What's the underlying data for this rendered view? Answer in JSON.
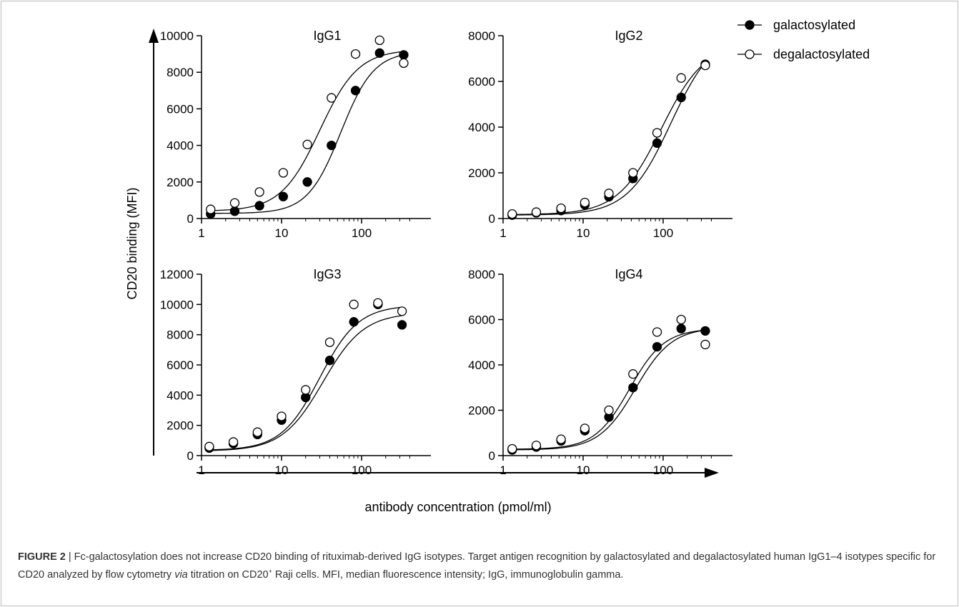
{
  "figure": {
    "caption": {
      "label": "FIGURE 2",
      "separator": "|",
      "part1": "Fc-galactosylation does not increase CD20 binding of rituximab-derived IgG isotypes. Target antigen recognition by galactosylated and degalactosylated human IgG1–4 isotypes specific for CD20 analyzed by flow cytometry",
      "via": "via",
      "part2": "titration on CD20",
      "superscript": "+",
      "part3": "Raji cells. MFI, median fluorescence intensity; IgG, immunoglobulin gamma."
    }
  },
  "chart_data": {
    "type": "scatter",
    "shared_ylabel": "CD20 binding (MFI)",
    "shared_xlabel": "antibody concentration (pmol/ml)",
    "legend": {
      "placement": "top-right",
      "entries": [
        {
          "name": "galactosylated",
          "marker": "filled-circle"
        },
        {
          "name": "degalactosylated",
          "marker": "open-circle"
        }
      ]
    },
    "x_scale": "log",
    "xlim": [
      1,
      400
    ],
    "xticks": [
      1,
      10,
      100
    ],
    "xtick_labels": [
      "1",
      "10",
      "100"
    ],
    "panels": [
      {
        "title": "IgG1",
        "ylim": [
          0,
          10000
        ],
        "yticks": [
          0,
          2000,
          4000,
          6000,
          8000,
          10000
        ],
        "ytick_labels": [
          "0",
          "2000",
          "4000",
          "6000",
          "8000",
          "10000"
        ],
        "series": [
          {
            "name": "galactosylated",
            "filled": true,
            "x": [
              1.3,
              2.6,
              5.3,
              10.5,
              21,
              42,
              84,
              168,
              336
            ],
            "y": [
              250,
              400,
              700,
              1200,
              2000,
              4000,
              7000,
              9050,
              8950
            ],
            "curve": {
              "bottom": 280,
              "top": 9150,
              "ec50": 55,
              "hill": 2.1
            }
          },
          {
            "name": "degalactosylated",
            "filled": false,
            "x": [
              1.3,
              2.6,
              5.3,
              10.5,
              21,
              42,
              84,
              168,
              336
            ],
            "y": [
              500,
              850,
              1450,
              2500,
              4050,
              6600,
              9000,
              9750,
              8500
            ],
            "curve": {
              "bottom": 400,
              "top": 9250,
              "ec50": 30,
              "hill": 1.8
            }
          }
        ]
      },
      {
        "title": "IgG2",
        "ylim": [
          0,
          8000
        ],
        "yticks": [
          0,
          2000,
          4000,
          6000,
          8000
        ],
        "ytick_labels": [
          "0",
          "2000",
          "4000",
          "6000",
          "8000"
        ],
        "series": [
          {
            "name": "galactosylated",
            "filled": true,
            "x": [
              1.3,
              2.6,
              5.3,
              10.5,
              21,
              42,
              84,
              168,
              336
            ],
            "y": [
              150,
              250,
              350,
              600,
              950,
              1750,
              3300,
              5300,
              6750
            ],
            "curve": {
              "bottom": 150,
              "top": 8200,
              "ec50": 125,
              "hill": 1.6
            }
          },
          {
            "name": "degalactosylated",
            "filled": false,
            "x": [
              1.3,
              2.6,
              5.3,
              10.5,
              21,
              42,
              84,
              168,
              336
            ],
            "y": [
              200,
              280,
              450,
              700,
              1100,
              2000,
              3750,
              6150,
              6700
            ],
            "curve": {
              "bottom": 170,
              "top": 7700,
              "ec50": 95,
              "hill": 1.6
            }
          }
        ]
      },
      {
        "title": "IgG3",
        "ylim": [
          0,
          12000
        ],
        "yticks": [
          0,
          2000,
          4000,
          6000,
          8000,
          10000,
          12000
        ],
        "ytick_labels": [
          "0",
          "2000",
          "4000",
          "6000",
          "8000",
          "10000",
          "12000"
        ],
        "series": [
          {
            "name": "galactosylated",
            "filled": true,
            "x": [
              1.25,
              2.5,
              5,
              10,
              20,
              40,
              80,
              160,
              320
            ],
            "y": [
              500,
              800,
              1400,
              2350,
              3850,
              6300,
              8850,
              10000,
              8650
            ],
            "curve": {
              "bottom": 300,
              "top": 9450,
              "ec50": 33,
              "hill": 1.7
            }
          },
          {
            "name": "degalactosylated",
            "filled": false,
            "x": [
              1.25,
              2.5,
              5,
              10,
              20,
              40,
              80,
              160,
              320
            ],
            "y": [
              600,
              900,
              1550,
              2600,
              4350,
              7500,
              10000,
              10100,
              9550
            ],
            "curve": {
              "bottom": 350,
              "top": 9950,
              "ec50": 30,
              "hill": 1.8
            }
          }
        ]
      },
      {
        "title": "IgG4",
        "ylim": [
          0,
          8000
        ],
        "yticks": [
          0,
          2000,
          4000,
          6000,
          8000
        ],
        "ytick_labels": [
          "0",
          "2000",
          "4000",
          "6000",
          "8000"
        ],
        "series": [
          {
            "name": "galactosylated",
            "filled": true,
            "x": [
              1.3,
              2.6,
              5.3,
              10.5,
              21,
              42,
              84,
              168,
              336
            ],
            "y": [
              250,
              380,
              650,
              1100,
              1700,
              3000,
              4800,
              5600,
              5500
            ],
            "curve": {
              "bottom": 250,
              "top": 5650,
              "ec50": 45,
              "hill": 1.9
            }
          },
          {
            "name": "degalactosylated",
            "filled": false,
            "x": [
              1.3,
              2.6,
              5.3,
              10.5,
              21,
              42,
              84,
              168,
              336
            ],
            "y": [
              300,
              450,
              720,
              1200,
              2000,
              3600,
              5450,
              6000,
              4900
            ],
            "curve": {
              "bottom": 280,
              "top": 5600,
              "ec50": 38,
              "hill": 2.0
            }
          }
        ]
      }
    ]
  }
}
